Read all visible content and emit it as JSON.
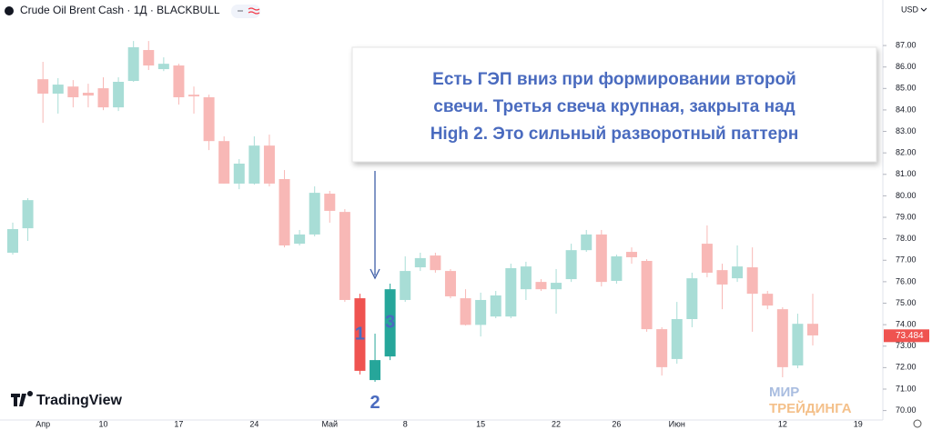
{
  "chart_data": {
    "type": "candlestick",
    "title": "Crude Oil Brent Cash · 1Д · BLACKBULL",
    "currency": "USD",
    "brand": "TradingView",
    "watermark": [
      "МИР",
      "ТРЕЙДИНГА"
    ],
    "annotation": [
      "Есть ГЭП вниз при формировании второй",
      "свечи. Третья свеча крупная, закрыта над",
      "High 2. Это сильный разворотный паттерн"
    ],
    "categories": [
      null,
      null,
      "Апр",
      null,
      null,
      null,
      "10",
      null,
      null,
      null,
      null,
      "17",
      null,
      null,
      null,
      null,
      "24",
      null,
      null,
      null,
      null,
      "Май",
      null,
      null,
      null,
      null,
      "8",
      null,
      null,
      null,
      null,
      "15",
      null,
      null,
      null,
      null,
      "22",
      null,
      null,
      null,
      "26",
      null,
      null,
      null,
      "Июн",
      null,
      null,
      null,
      null,
      null,
      null,
      "12",
      null,
      null,
      null,
      null,
      "19"
    ],
    "series": [
      {
        "name": "open",
        "values": [
          77.35,
          78.49,
          85.43,
          84.76,
          85.09,
          84.8,
          85.01,
          84.12,
          85.35,
          86.79,
          85.9,
          86.07,
          84.71,
          84.59,
          82.55,
          80.57,
          80.57,
          82.34,
          80.78,
          77.77,
          78.2,
          80.1,
          79.25,
          75.23,
          71.42,
          72.52,
          75.15,
          76.67,
          77.22,
          76.5,
          75.23,
          73.99,
          74.38,
          74.38,
          75.65,
          75.99,
          75.65,
          76.12,
          77.47,
          78.2,
          76.04,
          77.39,
          76.97,
          73.79,
          72.4,
          74.26,
          77.77,
          76.54,
          76.16,
          76.67,
          75.44,
          74.72,
          72.1,
          74.04,
          null,
          null,
          null
        ]
      },
      {
        "name": "high",
        "values": [
          78.75,
          79.89,
          86.24,
          85.48,
          85.39,
          85.22,
          85.52,
          85.52,
          87.21,
          87.21,
          86.45,
          86.15,
          85.09,
          84.71,
          82.77,
          81.71,
          82.77,
          82.85,
          81.2,
          78.41,
          80.44,
          80.23,
          79.38,
          75.44,
          73.58,
          75.91,
          77.18,
          77.35,
          77.35,
          76.59,
          75.65,
          75.49,
          75.57,
          76.84,
          76.93,
          76.12,
          76.59,
          77.77,
          78.41,
          78.41,
          77.26,
          77.6,
          77.05,
          73.88,
          75.06,
          76.42,
          78.62,
          76.84,
          77.69,
          77.6,
          75.57,
          74.81,
          74.51,
          75.44,
          null,
          null,
          null
        ]
      },
      {
        "name": "low",
        "values": [
          77.26,
          77.9,
          83.4,
          83.83,
          84.12,
          84.12,
          83.99,
          83.95,
          85.31,
          85.86,
          85.81,
          84.25,
          83.83,
          82.13,
          80.57,
          80.31,
          80.52,
          80.44,
          77.6,
          77.69,
          78.11,
          78.75,
          75.06,
          71.68,
          71.34,
          72.35,
          75.06,
          76.5,
          76.42,
          75.23,
          73.96,
          73.45,
          74.3,
          74.3,
          75.15,
          75.57,
          74.51,
          75.99,
          77.39,
          75.78,
          75.91,
          76.84,
          73.67,
          71.63,
          72.18,
          73.88,
          76.21,
          74.72,
          75.99,
          73.67,
          74.72,
          71.55,
          71.97,
          73.03,
          null,
          null,
          null
        ]
      },
      {
        "name": "close",
        "values": [
          78.45,
          79.8,
          84.76,
          85.18,
          84.59,
          84.67,
          84.12,
          85.31,
          86.92,
          86.07,
          86.15,
          84.59,
          84.63,
          82.55,
          80.57,
          81.5,
          82.34,
          80.57,
          77.69,
          78.2,
          80.14,
          79.3,
          75.15,
          71.85,
          72.35,
          75.65,
          76.5,
          77.1,
          76.54,
          75.32,
          73.99,
          75.15,
          75.36,
          76.63,
          76.71,
          75.65,
          75.95,
          77.47,
          78.2,
          75.99,
          77.18,
          77.14,
          73.79,
          72.02,
          74.26,
          76.16,
          76.42,
          75.87,
          76.71,
          75.44,
          74.89,
          72.02,
          74.04,
          73.5,
          null,
          null,
          null
        ]
      }
    ],
    "up_color": "#a8ddd6",
    "down_color": "#f8b8b6",
    "highlights": [
      {
        "index": 23,
        "label": "1",
        "color": "#ef5350"
      },
      {
        "index": 24,
        "label": "2",
        "color": "#26a69a"
      },
      {
        "index": 25,
        "label": "3",
        "color": "#26a69a"
      }
    ],
    "last_price": 73.484,
    "last_price_color": "#ef5350",
    "ylim": [
      69.56,
      89.12
    ],
    "yticks": [
      {
        "value": 70,
        "label": "70.00"
      },
      {
        "value": 71,
        "label": "71.00"
      },
      {
        "value": 72,
        "label": "72.00"
      },
      {
        "value": 73,
        "label": "73.00"
      },
      {
        "value": 74,
        "label": "74.00"
      },
      {
        "value": 75,
        "label": "75.00"
      },
      {
        "value": 76,
        "label": "76.00"
      },
      {
        "value": 77,
        "label": "77.00"
      },
      {
        "value": 78,
        "label": "78.00"
      },
      {
        "value": 79,
        "label": "79.00"
      },
      {
        "value": 80,
        "label": "80.00"
      },
      {
        "value": 81,
        "label": "81.00"
      },
      {
        "value": 82,
        "label": "82.00"
      },
      {
        "value": 83,
        "label": "83.00"
      },
      {
        "value": 84,
        "label": "84.00"
      },
      {
        "value": 85,
        "label": "85.00"
      },
      {
        "value": 86,
        "label": "86.00"
      },
      {
        "value": 87,
        "label": "87.00"
      }
    ],
    "grid": false
  }
}
